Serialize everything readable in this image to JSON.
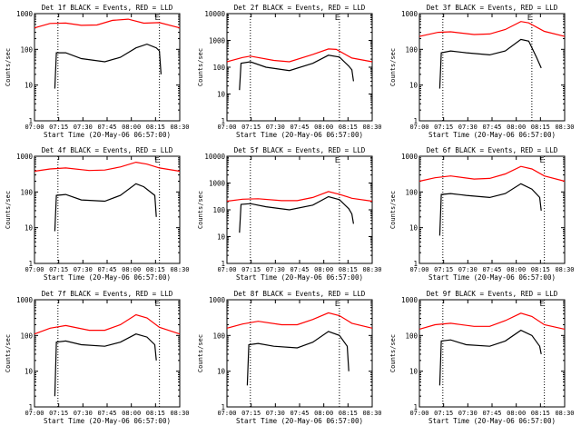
{
  "chart_data": [
    {
      "type": "line",
      "title": "Det 1f BLACK = Events, RED = LLD",
      "ylabel": "Counts/sec",
      "xlabel": "Start Time (20-May-06 06:57:00)",
      "x_ticks": [
        "07:00",
        "07:15",
        "07:30",
        "07:45",
        "08:00",
        "08:15",
        "08:30"
      ],
      "y_ticks": [
        "1",
        "10",
        "100",
        "1000"
      ],
      "ylim": [
        1,
        1000
      ],
      "y_scale": "log",
      "xlim_min": [
        0,
        93
      ],
      "series": [
        {
          "color": "#ff0000",
          "points": [
            [
              0,
              400
            ],
            [
              10,
              530
            ],
            [
              20,
              545
            ],
            [
              30,
              470
            ],
            [
              40,
              480
            ],
            [
              50,
              650
            ],
            [
              60,
              700
            ],
            [
              70,
              540
            ],
            [
              80,
              560
            ],
            [
              93,
              400
            ]
          ]
        },
        {
          "color": "#000000",
          "points": [
            [
              13,
              8
            ],
            [
              14,
              80
            ],
            [
              20,
              80
            ],
            [
              30,
              55
            ],
            [
              45,
              45
            ],
            [
              55,
              60
            ],
            [
              65,
              110
            ],
            [
              72,
              140
            ],
            [
              78,
              110
            ],
            [
              80,
              90
            ],
            [
              81,
              20
            ]
          ]
        }
      ],
      "markers": [
        {
          "x": 15
        },
        {
          "x": 80
        }
      ],
      "E_label": "E"
    },
    {
      "type": "line",
      "title": "Det 2f BLACK = Events, RED = LLD",
      "ylabel": "Counts/sec",
      "xlabel": "Start Time (20-May-06 06:57:00)",
      "x_ticks": [
        "07:00",
        "07:15",
        "07:30",
        "07:45",
        "08:00",
        "08:15",
        "08:30"
      ],
      "y_ticks": [
        "1",
        "10",
        "100",
        "1000",
        "10000"
      ],
      "ylim": [
        1,
        10000
      ],
      "y_scale": "log",
      "xlim_min": [
        0,
        93
      ],
      "series": [
        {
          "color": "#ff0000",
          "points": [
            [
              0,
              160
            ],
            [
              10,
              230
            ],
            [
              15,
              260
            ],
            [
              30,
              180
            ],
            [
              40,
              160
            ],
            [
              55,
              300
            ],
            [
              65,
              480
            ],
            [
              70,
              460
            ],
            [
              80,
              220
            ],
            [
              93,
              160
            ]
          ]
        },
        {
          "color": "#000000",
          "points": [
            [
              8,
              14
            ],
            [
              9,
              140
            ],
            [
              15,
              160
            ],
            [
              25,
              100
            ],
            [
              40,
              75
            ],
            [
              55,
              140
            ],
            [
              65,
              280
            ],
            [
              72,
              240
            ],
            [
              78,
              110
            ],
            [
              80,
              80
            ],
            [
              81,
              30
            ]
          ]
        }
      ],
      "markers": [
        {
          "x": 15
        },
        {
          "x": 72
        }
      ],
      "E_label": "E"
    },
    {
      "type": "line",
      "title": "Det 3f BLACK = Events, RED = LLD",
      "ylabel": "Counts/sec",
      "xlabel": "Start Time (20-May-06 06:57:00)",
      "x_ticks": [
        "07:00",
        "07:15",
        "07:30",
        "07:45",
        "08:00",
        "08:15",
        "08:30"
      ],
      "y_ticks": [
        "1",
        "10",
        "100",
        "1000"
      ],
      "ylim": [
        1,
        1000
      ],
      "y_scale": "log",
      "xlim_min": [
        0,
        93
      ],
      "series": [
        {
          "color": "#ff0000",
          "points": [
            [
              0,
              230
            ],
            [
              12,
              300
            ],
            [
              20,
              310
            ],
            [
              35,
              260
            ],
            [
              45,
              270
            ],
            [
              55,
              360
            ],
            [
              65,
              600
            ],
            [
              70,
              550
            ],
            [
              80,
              320
            ],
            [
              93,
              230
            ]
          ]
        },
        {
          "color": "#000000",
          "points": [
            [
              13,
              8
            ],
            [
              14,
              80
            ],
            [
              20,
              90
            ],
            [
              30,
              80
            ],
            [
              45,
              70
            ],
            [
              55,
              90
            ],
            [
              65,
              190
            ],
            [
              70,
              170
            ],
            [
              75,
              60
            ],
            [
              78,
              30
            ]
          ]
        }
      ],
      "markers": [
        {
          "x": 15
        },
        {
          "x": 72
        }
      ],
      "E_label": "E"
    },
    {
      "type": "line",
      "title": "Det 4f BLACK = Events, RED = LLD",
      "ylabel": "Counts/sec",
      "xlabel": "Start Time (20-May-06 06:57:00)",
      "x_ticks": [
        "07:00",
        "07:15",
        "07:30",
        "07:45",
        "08:00",
        "08:15",
        "08:30"
      ],
      "y_ticks": [
        "1",
        "10",
        "100",
        "1000"
      ],
      "ylim": [
        1,
        1000
      ],
      "y_scale": "log",
      "xlim_min": [
        0,
        93
      ],
      "series": [
        {
          "color": "#ff0000",
          "points": [
            [
              0,
              380
            ],
            [
              10,
              440
            ],
            [
              20,
              470
            ],
            [
              35,
              400
            ],
            [
              45,
              410
            ],
            [
              55,
              500
            ],
            [
              65,
              680
            ],
            [
              72,
              600
            ],
            [
              80,
              470
            ],
            [
              93,
              380
            ]
          ]
        },
        {
          "color": "#000000",
          "points": [
            [
              13,
              8
            ],
            [
              14,
              80
            ],
            [
              20,
              85
            ],
            [
              30,
              60
            ],
            [
              45,
              55
            ],
            [
              55,
              80
            ],
            [
              65,
              170
            ],
            [
              70,
              140
            ],
            [
              77,
              80
            ],
            [
              78,
              20
            ]
          ]
        }
      ],
      "markers": [
        {
          "x": 15
        },
        {
          "x": 80
        }
      ],
      "E_label": "E"
    },
    {
      "type": "line",
      "title": "Det 5f BLACK = Events, RED = LLD",
      "ylabel": "Counts/sec",
      "xlabel": "Start Time (20-May-06 06:57:00)",
      "x_ticks": [
        "07:00",
        "07:15",
        "07:30",
        "07:45",
        "08:00",
        "08:15",
        "08:30"
      ],
      "y_ticks": [
        "1",
        "10",
        "100",
        "1000",
        "10000"
      ],
      "ylim": [
        1,
        10000
      ],
      "y_scale": "log",
      "xlim_min": [
        0,
        93
      ],
      "series": [
        {
          "color": "#ff0000",
          "points": [
            [
              0,
              210
            ],
            [
              10,
              250
            ],
            [
              20,
              260
            ],
            [
              35,
              220
            ],
            [
              45,
              220
            ],
            [
              55,
              290
            ],
            [
              65,
              480
            ],
            [
              72,
              380
            ],
            [
              80,
              270
            ],
            [
              93,
              210
            ]
          ]
        },
        {
          "color": "#000000",
          "points": [
            [
              8,
              14
            ],
            [
              9,
              160
            ],
            [
              15,
              170
            ],
            [
              25,
              130
            ],
            [
              40,
              100
            ],
            [
              55,
              150
            ],
            [
              65,
              310
            ],
            [
              72,
              240
            ],
            [
              78,
              110
            ],
            [
              80,
              70
            ],
            [
              81,
              30
            ]
          ]
        }
      ],
      "markers": [
        {
          "x": 15
        },
        {
          "x": 72
        }
      ],
      "E_label": "E"
    },
    {
      "type": "line",
      "title": "Det 6f BLACK = Events, RED = LLD",
      "ylabel": "Counts/sec",
      "xlabel": "Start Time (20-May-06 06:57:00)",
      "x_ticks": [
        "07:00",
        "07:15",
        "07:30",
        "07:45",
        "08:00",
        "08:15",
        "08:30"
      ],
      "y_ticks": [
        "1",
        "10",
        "100",
        "1000"
      ],
      "ylim": [
        1,
        1000
      ],
      "y_scale": "log",
      "xlim_min": [
        0,
        93
      ],
      "series": [
        {
          "color": "#ff0000",
          "points": [
            [
              0,
              200
            ],
            [
              10,
              250
            ],
            [
              20,
              280
            ],
            [
              35,
              230
            ],
            [
              45,
              240
            ],
            [
              55,
              320
            ],
            [
              65,
              520
            ],
            [
              72,
              440
            ],
            [
              80,
              280
            ],
            [
              93,
              200
            ]
          ]
        },
        {
          "color": "#000000",
          "points": [
            [
              13,
              6
            ],
            [
              14,
              85
            ],
            [
              20,
              90
            ],
            [
              30,
              80
            ],
            [
              45,
              70
            ],
            [
              55,
              90
            ],
            [
              65,
              170
            ],
            [
              72,
              120
            ],
            [
              77,
              70
            ],
            [
              78,
              30
            ]
          ]
        }
      ],
      "markers": [
        {
          "x": 15
        },
        {
          "x": 80
        }
      ],
      "E_label": "E"
    },
    {
      "type": "line",
      "title": "Det 7f BLACK = Events, RED = LLD",
      "ylabel": "Counts/sec",
      "xlabel": "Start Time (20-May-06 06:57:00)",
      "x_ticks": [
        "07:00",
        "07:15",
        "07:30",
        "07:45",
        "08:00",
        "08:15",
        "08:30"
      ],
      "y_ticks": [
        "1",
        "10",
        "100",
        "1000"
      ],
      "ylim": [
        1,
        1000
      ],
      "y_scale": "log",
      "xlim_min": [
        0,
        93
      ],
      "series": [
        {
          "color": "#ff0000",
          "points": [
            [
              0,
              110
            ],
            [
              10,
              160
            ],
            [
              20,
              190
            ],
            [
              35,
              140
            ],
            [
              45,
              140
            ],
            [
              55,
              200
            ],
            [
              65,
              380
            ],
            [
              72,
              310
            ],
            [
              80,
              170
            ],
            [
              93,
              110
            ]
          ]
        },
        {
          "color": "#000000",
          "points": [
            [
              13,
              2
            ],
            [
              14,
              65
            ],
            [
              20,
              70
            ],
            [
              30,
              55
            ],
            [
              45,
              50
            ],
            [
              55,
              65
            ],
            [
              65,
              110
            ],
            [
              72,
              90
            ],
            [
              77,
              55
            ],
            [
              78,
              20
            ]
          ]
        }
      ],
      "markers": [
        {
          "x": 15
        },
        {
          "x": 80
        }
      ],
      "E_label": "E"
    },
    {
      "type": "line",
      "title": "Det 8f BLACK = Events, RED = LLD",
      "ylabel": "Counts/sec",
      "xlabel": "Start Time (20-May-06 06:57:00)",
      "x_ticks": [
        "07:00",
        "07:15",
        "07:30",
        "07:45",
        "08:00",
        "08:15",
        "08:30"
      ],
      "y_ticks": [
        "1",
        "10",
        "100",
        "1000"
      ],
      "ylim": [
        1,
        1000
      ],
      "y_scale": "log",
      "xlim_min": [
        0,
        93
      ],
      "series": [
        {
          "color": "#ff0000",
          "points": [
            [
              0,
              160
            ],
            [
              10,
              210
            ],
            [
              20,
              250
            ],
            [
              35,
              200
            ],
            [
              45,
              200
            ],
            [
              55,
              280
            ],
            [
              65,
              430
            ],
            [
              72,
              360
            ],
            [
              80,
              220
            ],
            [
              93,
              160
            ]
          ]
        },
        {
          "color": "#000000",
          "points": [
            [
              13,
              4
            ],
            [
              14,
              55
            ],
            [
              20,
              60
            ],
            [
              30,
              50
            ],
            [
              45,
              45
            ],
            [
              55,
              65
            ],
            [
              65,
              130
            ],
            [
              72,
              100
            ],
            [
              77,
              50
            ],
            [
              78,
              10
            ]
          ]
        }
      ],
      "markers": [
        {
          "x": 15
        },
        {
          "x": 72
        }
      ],
      "E_label": "E"
    },
    {
      "type": "line",
      "title": "Det 9f BLACK = Events, RED = LLD",
      "ylabel": "Counts/sec",
      "xlabel": "Start Time (20-May-06 06:57:00)",
      "x_ticks": [
        "07:00",
        "07:15",
        "07:30",
        "07:45",
        "08:00",
        "08:15",
        "08:30"
      ],
      "y_ticks": [
        "1",
        "10",
        "100",
        "1000"
      ],
      "ylim": [
        1,
        1000
      ],
      "y_scale": "log",
      "xlim_min": [
        0,
        93
      ],
      "series": [
        {
          "color": "#ff0000",
          "points": [
            [
              0,
              150
            ],
            [
              10,
              200
            ],
            [
              20,
              220
            ],
            [
              35,
              180
            ],
            [
              45,
              180
            ],
            [
              55,
              260
            ],
            [
              65,
              420
            ],
            [
              72,
              340
            ],
            [
              80,
              200
            ],
            [
              93,
              150
            ]
          ]
        },
        {
          "color": "#000000",
          "points": [
            [
              13,
              4
            ],
            [
              14,
              70
            ],
            [
              20,
              75
            ],
            [
              30,
              55
            ],
            [
              45,
              50
            ],
            [
              55,
              70
            ],
            [
              65,
              140
            ],
            [
              72,
              100
            ],
            [
              77,
              50
            ],
            [
              78,
              30
            ]
          ]
        }
      ],
      "markers": [
        {
          "x": 15
        },
        {
          "x": 80
        }
      ],
      "E_label": "E"
    }
  ]
}
